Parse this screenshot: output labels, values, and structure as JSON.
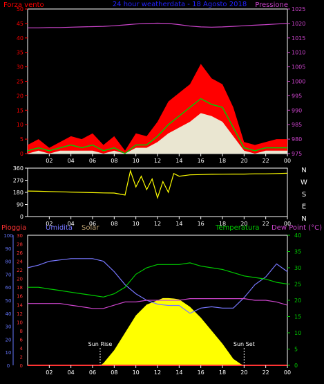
{
  "chart_data": [
    {
      "type": "line",
      "title": "24 hour weatherdata - 18 Agosto 2018",
      "ylabel_left": "Forza vento",
      "ylabel_right": "Pressione",
      "x_ticks": [
        "02",
        "04",
        "06",
        "08",
        "10",
        "12",
        "14",
        "16",
        "18",
        "20",
        "22",
        "00"
      ],
      "ylim_left": [
        0,
        50
      ],
      "left_ticks": [
        0,
        5,
        10,
        15,
        20,
        25,
        30,
        35,
        40,
        45,
        50
      ],
      "ylim_right": [
        975,
        1025
      ],
      "right_ticks": [
        975,
        980,
        985,
        990,
        995,
        1000,
        1005,
        1010,
        1015,
        1020,
        1025
      ],
      "colors": {
        "gust": "#ff0000",
        "wind": "#00cc00",
        "avg": "#e8ffe8",
        "pressure": "#cc44cc",
        "title": "#2222ff",
        "left_axis": "#ff0000",
        "right_axis": "#cc44cc"
      },
      "series": [
        {
          "name": "Pressione",
          "axis": "right",
          "x": [
            0,
            1,
            2,
            3,
            4,
            5,
            6,
            7,
            8,
            9,
            10,
            11,
            12,
            13,
            14,
            15,
            16,
            17,
            18,
            19,
            20,
            21,
            22,
            23,
            24
          ],
          "values": [
            1018.5,
            1018.5,
            1018.6,
            1018.6,
            1018.7,
            1018.8,
            1018.9,
            1019.0,
            1019.2,
            1019.5,
            1019.8,
            1020.0,
            1020.1,
            1020.0,
            1019.6,
            1019.1,
            1018.8,
            1018.7,
            1018.8,
            1019.0,
            1019.2,
            1019.4,
            1019.6,
            1019.8,
            1020.0
          ]
        },
        {
          "name": "gust",
          "axis": "left",
          "x": [
            0,
            1,
            2,
            3,
            4,
            5,
            6,
            7,
            8,
            9,
            10,
            11,
            12,
            13,
            14,
            15,
            16,
            17,
            18,
            19,
            20,
            21,
            22,
            23,
            24
          ],
          "values": [
            3,
            5,
            2,
            4,
            6,
            5,
            7,
            3,
            6,
            1,
            7,
            6,
            11,
            18,
            21,
            24,
            31,
            26,
            24,
            16,
            4,
            3,
            4,
            5,
            5
          ]
        },
        {
          "name": "wind",
          "axis": "left",
          "x": [
            0,
            1,
            2,
            3,
            4,
            5,
            6,
            7,
            8,
            9,
            10,
            11,
            12,
            13,
            14,
            15,
            16,
            17,
            18,
            19,
            20,
            21,
            22,
            23,
            24
          ],
          "values": [
            1,
            2,
            1,
            2,
            3,
            2,
            3,
            1,
            2,
            0,
            3,
            3,
            6,
            10,
            13,
            16,
            19,
            17,
            16,
            9,
            2,
            1,
            2,
            2,
            2
          ]
        },
        {
          "name": "avg",
          "axis": "left",
          "x": [
            0,
            1,
            2,
            3,
            4,
            5,
            6,
            7,
            8,
            9,
            10,
            11,
            12,
            13,
            14,
            15,
            16,
            17,
            18,
            19,
            20,
            21,
            22,
            23,
            24
          ],
          "values": [
            0,
            1,
            0,
            1,
            1,
            1,
            1,
            0,
            1,
            0,
            2,
            2,
            4,
            7,
            9,
            11,
            14,
            13,
            11,
            6,
            1,
            0,
            1,
            1,
            1
          ]
        }
      ]
    },
    {
      "type": "line",
      "ylabel_right": [
        "N",
        "W",
        "S",
        "E",
        "N"
      ],
      "x_ticks": [
        "02",
        "04",
        "06",
        "08",
        "10",
        "12",
        "14",
        "16",
        "18",
        "20",
        "22",
        "00"
      ],
      "ylim": [
        0,
        360
      ],
      "left_ticks": [
        0,
        90,
        180,
        270,
        360
      ],
      "colors": {
        "dir": "#ffff00"
      },
      "series": [
        {
          "name": "Direzione",
          "x": [
            0,
            1,
            2,
            3,
            4,
            5,
            6,
            7,
            8,
            9,
            9.5,
            10,
            10.5,
            11,
            11.5,
            12,
            12.5,
            13,
            13.5,
            14,
            15,
            16,
            17,
            18,
            19,
            20,
            21,
            22,
            23,
            24
          ],
          "values": [
            190,
            188,
            186,
            184,
            182,
            180,
            178,
            176,
            175,
            160,
            340,
            220,
            300,
            200,
            280,
            140,
            260,
            180,
            320,
            300,
            310,
            312,
            314,
            315,
            316,
            316,
            318,
            318,
            320,
            322
          ]
        }
      ]
    },
    {
      "type": "line",
      "labels": {
        "rain": "Pioggia",
        "hum": "Umidita",
        "solar": "Solar",
        "temp": "Temperatura",
        "dew": "Dew Point (°C)"
      },
      "x_ticks": [
        "02",
        "04",
        "06",
        "08",
        "10",
        "12",
        "14",
        "16",
        "18",
        "20",
        "22",
        "00"
      ],
      "ylim_hum": [
        0,
        100
      ],
      "hum_ticks": [
        0,
        10,
        20,
        30,
        40,
        50,
        60,
        70,
        80,
        90,
        100
      ],
      "ylim_rain": [
        0,
        30
      ],
      "rain_ticks": [
        0,
        2,
        4,
        6,
        8,
        10,
        12,
        14,
        16,
        18,
        20,
        22,
        24,
        26,
        28,
        30
      ],
      "ylim_temp": [
        0,
        40
      ],
      "temp_ticks": [
        0,
        5,
        10,
        15,
        20,
        25,
        30,
        35,
        40
      ],
      "annotations": [
        {
          "text": "Sun Rise",
          "x": 6.7
        },
        {
          "text": "Sun Set",
          "x": 20.0
        }
      ],
      "colors": {
        "rain": "#ff3333",
        "hum": "#7777ff",
        "solar_label": "#bba070",
        "solar": "#ffff00",
        "temp": "#00cc00",
        "dew": "#cc44cc",
        "hum_axis": "#6677ff",
        "rain_axis": "#ff3333",
        "temp_axis": "#00cc00"
      },
      "series": [
        {
          "name": "Umidita",
          "axis": "hum",
          "x": [
            0,
            1,
            2,
            3,
            4,
            5,
            6,
            7,
            8,
            9,
            10,
            11,
            12,
            13,
            14,
            15,
            16,
            17,
            18,
            19,
            20,
            21,
            22,
            23,
            24
          ],
          "values": [
            75,
            77,
            80,
            81,
            82,
            82,
            82,
            80,
            72,
            62,
            55,
            50,
            47,
            46,
            46,
            40,
            44,
            45,
            44,
            44,
            52,
            62,
            68,
            78,
            72
          ]
        },
        {
          "name": "Temperatura",
          "axis": "temp",
          "x": [
            0,
            1,
            2,
            3,
            4,
            5,
            6,
            7,
            8,
            9,
            10,
            11,
            12,
            13,
            14,
            15,
            16,
            17,
            18,
            19,
            20,
            21,
            22,
            23,
            24
          ],
          "values": [
            24,
            24,
            23.5,
            23,
            22.5,
            22,
            21.5,
            21,
            22,
            24,
            28,
            30,
            31,
            31,
            31,
            31.5,
            30.5,
            30,
            29.5,
            28.5,
            27.5,
            27,
            26.5,
            25.5,
            25
          ]
        },
        {
          "name": "Dew Point",
          "axis": "temp",
          "x": [
            0,
            1,
            2,
            3,
            4,
            5,
            6,
            7,
            8,
            9,
            10,
            11,
            12,
            13,
            14,
            15,
            16,
            17,
            18,
            19,
            20,
            21,
            22,
            23,
            24
          ],
          "values": [
            19,
            19,
            19,
            19,
            18.5,
            18,
            17.5,
            17.5,
            18.5,
            19.5,
            19.5,
            20,
            20,
            20,
            20,
            20.5,
            20.5,
            20.5,
            20.5,
            20.5,
            20.5,
            20,
            20,
            19.5,
            18.5
          ]
        },
        {
          "name": "Solar",
          "axis": "rain",
          "x": [
            0,
            6.7,
            7,
            8,
            9,
            10,
            11,
            12,
            12.5,
            13,
            13.5,
            14,
            15,
            16,
            17,
            18,
            19,
            19.7,
            20,
            24
          ],
          "values": [
            0,
            0,
            0.5,
            3.5,
            7.5,
            11.5,
            14,
            15,
            15.5,
            15.5,
            15.4,
            15.2,
            13.5,
            11,
            8,
            5,
            1.5,
            0.3,
            0,
            0
          ]
        },
        {
          "name": "Pioggia",
          "axis": "rain",
          "x": [
            0,
            24
          ],
          "values": [
            0,
            0
          ]
        }
      ]
    }
  ]
}
